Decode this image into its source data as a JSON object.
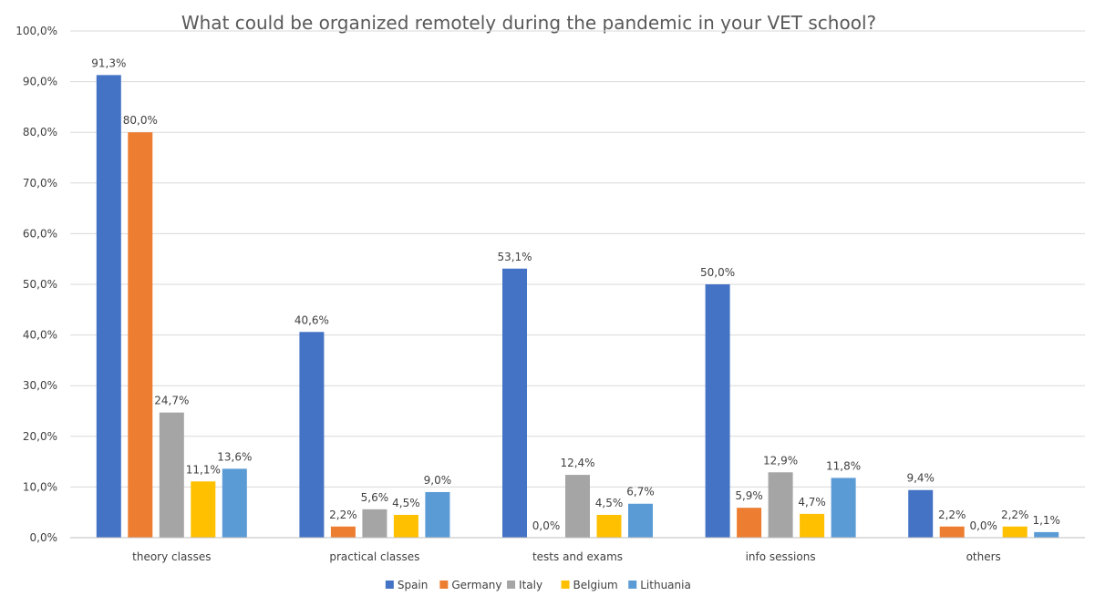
{
  "chart_data": {
    "type": "bar",
    "title": "What could be organized remotely during the pandemic in your VET school?",
    "xlabel": "",
    "ylabel": "",
    "ylim": [
      0,
      100
    ],
    "yticks": [
      "0,0%",
      "10,0%",
      "20,0%",
      "30,0%",
      "40,0%",
      "50,0%",
      "60,0%",
      "70,0%",
      "80,0%",
      "90,0%",
      "100,0%"
    ],
    "grid": true,
    "legend_position": "bottom",
    "categories": [
      "theory classes",
      "practical classes",
      "tests and exams",
      "info sessions",
      "others"
    ],
    "series": [
      {
        "name": "Spain",
        "color": "#4472c4",
        "values": [
          91.3,
          40.6,
          53.1,
          50.0,
          9.4
        ],
        "labels": [
          "91,3%",
          "40,6%",
          "53,1%",
          "50,0%",
          "9,4%"
        ]
      },
      {
        "name": "Germany",
        "color": "#ed7d31",
        "values": [
          80.0,
          2.2,
          0.0,
          5.9,
          2.2
        ],
        "labels": [
          "80,0%",
          "2,2%",
          "0,0%",
          "5,9%",
          "2,2%"
        ]
      },
      {
        "name": "Italy",
        "color": "#a5a5a5",
        "values": [
          24.7,
          5.6,
          12.4,
          12.9,
          0.0
        ],
        "labels": [
          "24,7%",
          "5,6%",
          "12,4%",
          "12,9%",
          "0,0%"
        ]
      },
      {
        "name": "Belgium",
        "color": "#ffc000",
        "values": [
          11.1,
          4.5,
          4.5,
          4.7,
          2.2
        ],
        "labels": [
          "11,1%",
          "4,5%",
          "4,5%",
          "4,7%",
          "2,2%"
        ]
      },
      {
        "name": "Lithuania",
        "color": "#5b9bd5",
        "values": [
          13.6,
          9.0,
          6.7,
          11.8,
          1.1
        ],
        "labels": [
          "13,6%",
          "9,0%",
          "6,7%",
          "11,8%",
          "1,1%"
        ]
      }
    ]
  }
}
